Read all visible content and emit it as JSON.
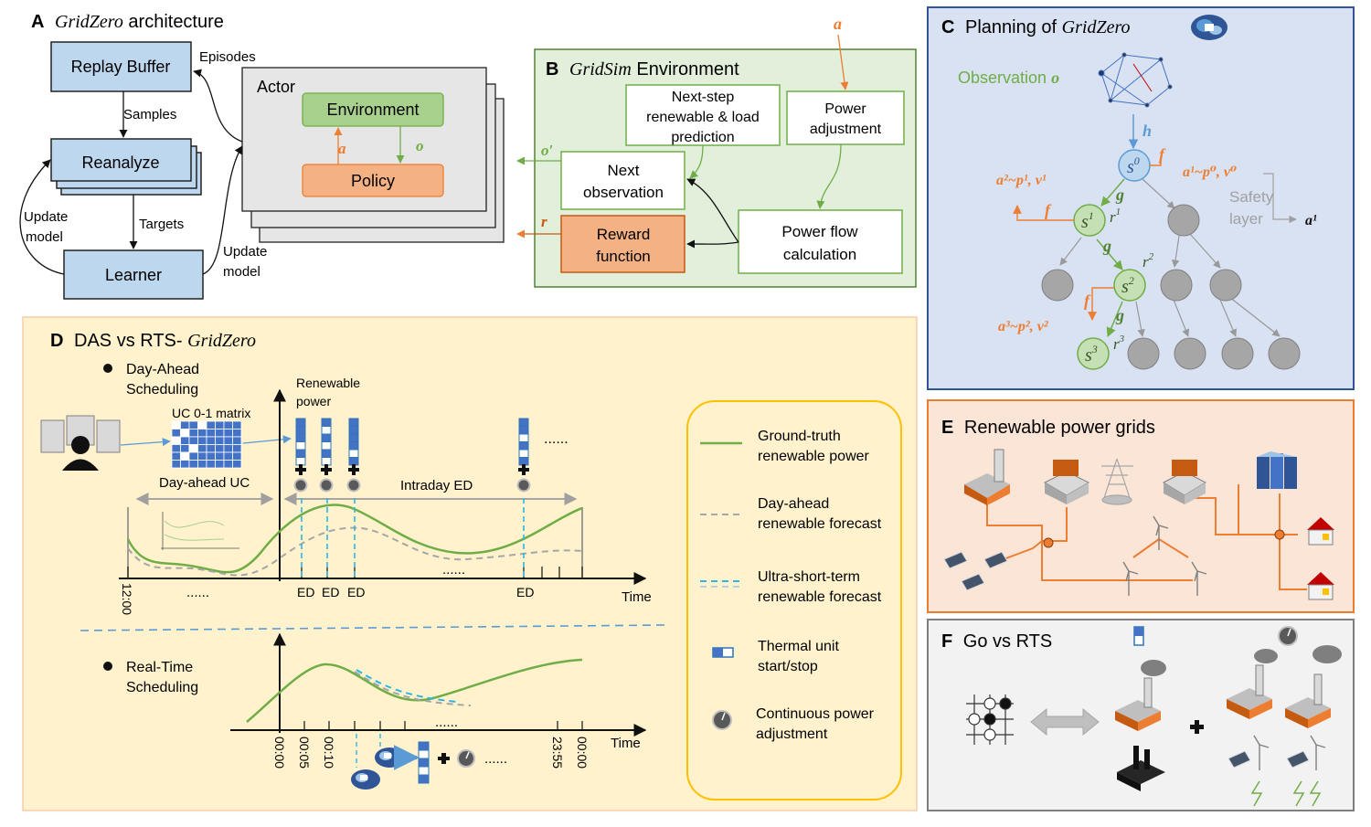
{
  "panelA": {
    "letter": "A",
    "title": "GridZero",
    "title_rest": " architecture",
    "replay_buffer": "Replay Buffer",
    "reanalyze": "Reanalyze",
    "learner": "Learner",
    "actor": "Actor",
    "environment": "Environment",
    "policy": "Policy",
    "episodes": "Episodes",
    "samples": "Samples",
    "targets": "Targets",
    "update_model_left_1": "Update",
    "update_model_left_2": "model",
    "update_model_right_1": "Update",
    "update_model_right_2": "model",
    "a": "a",
    "o": "o"
  },
  "panelB": {
    "letter": "B",
    "title": "GridSim",
    "title_rest": " Environment",
    "next_step_1": "Next-step",
    "next_step_2": "renewable & load",
    "next_step_3": "prediction",
    "power_adj_1": "Power",
    "power_adj_2": "adjustment",
    "next_obs_1": "Next",
    "next_obs_2": "observation",
    "reward_1": "Reward",
    "reward_2": "function",
    "power_flow_1": "Power flow",
    "power_flow_2": "calculation",
    "a": "a",
    "o_prime": "o′",
    "r": "r"
  },
  "panelC": {
    "letter": "C",
    "title_pre": "Planning of ",
    "title": "GridZero",
    "observation": "Observation ",
    "observation_var": "o",
    "h": "h",
    "f": "f",
    "g": "g",
    "s0": "s",
    "s0_sup": "0",
    "s1": "s",
    "s1_sup": "1",
    "s2": "s",
    "s2_sup": "2",
    "s3": "s",
    "s3_sup": "3",
    "r1": "r",
    "r1_sup": "1",
    "r2": "r",
    "r2_sup": "2",
    "r3": "r",
    "r3_sup": "3",
    "a1_label": "a¹~p⁰, v⁰",
    "a2_label": "a²~p¹, v¹",
    "a3_label": "a³~p², v²",
    "safety_1": "Safety",
    "safety_2": "layer",
    "a_final": "a¹"
  },
  "panelD": {
    "letter": "D",
    "title_pre": "DAS vs RTS-",
    "title": "GridZero",
    "day_ahead_1": "Day-Ahead",
    "day_ahead_2": "Scheduling",
    "uc_matrix": "UC 0-1 matrix",
    "renewable_1": "Renewable",
    "renewable_2": "power",
    "day_ahead_uc": "Day-ahead UC",
    "intraday_ed": "Intraday ED",
    "ed_labels": [
      "ED",
      "ED",
      "ED",
      "ED"
    ],
    "time_top": "Time",
    "time_bottom": "Time",
    "tick_1200": "12:00",
    "dots": "......",
    "real_time_1": "Real-Time",
    "real_time_2": "Scheduling",
    "rt_ticks": [
      "00:00",
      "00:05",
      "00:10",
      "23:55",
      "00:00"
    ],
    "legend": [
      {
        "label_1": "Ground-truth",
        "label_2": "renewable power",
        "color": "#70ad47"
      },
      {
        "label_1": "Day-ahead",
        "label_2": "renewable forecast",
        "color": "#a5a5a5"
      },
      {
        "label_1": "Ultra-short-term",
        "label_2": "renewable forecast",
        "color": "#2eb4e6"
      },
      {
        "label_1": "Thermal unit",
        "label_2": "start/stop",
        "color": "#4472c4"
      },
      {
        "label_1": "Continuous power",
        "label_2": "adjustment",
        "color": "#595959"
      }
    ]
  },
  "panelE": {
    "letter": "E",
    "title": "Renewable power grids"
  },
  "panelF": {
    "letter": "F",
    "title": "Go vs RTS"
  },
  "colors": {
    "orange": "#ed7d31",
    "green": "#70ad47",
    "blue": "#5b9bd5",
    "panelA_box": "#bdd7ee",
    "panelB_bg": "#e2efda",
    "panelC_bg": "#d9e2f3",
    "panelD_bg": "#fff2cc",
    "panelE_bg": "#fbe5d6",
    "panelF_bg": "#f2f2f2"
  }
}
